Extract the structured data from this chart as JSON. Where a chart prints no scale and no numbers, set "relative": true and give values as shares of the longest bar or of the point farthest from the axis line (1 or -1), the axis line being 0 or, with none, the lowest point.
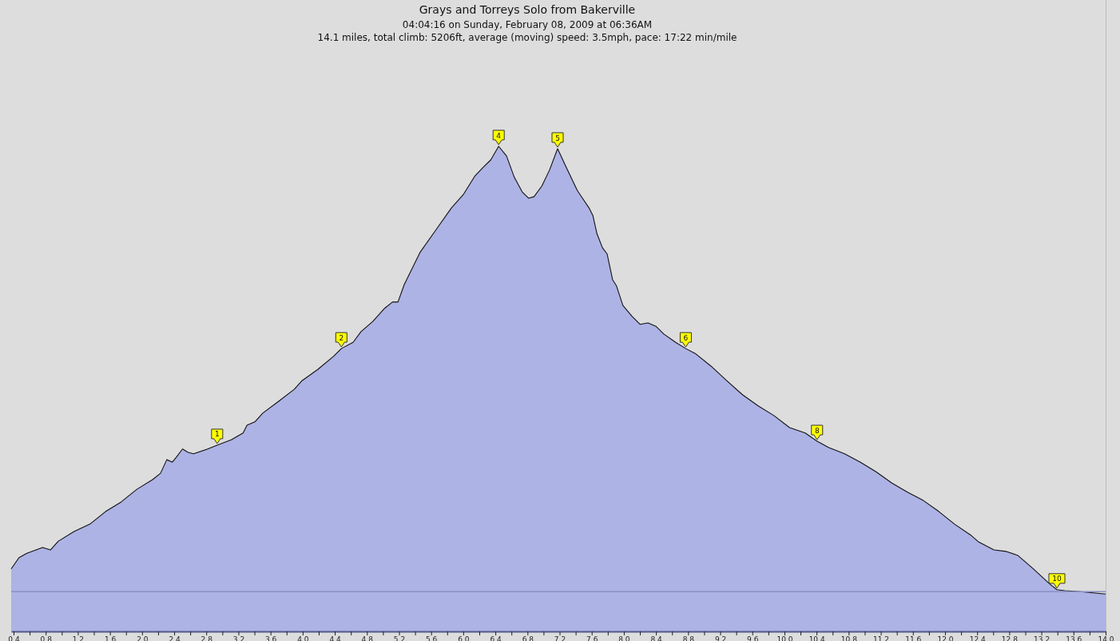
{
  "chart_data": {
    "type": "area",
    "relative": true,
    "title": "Grays and Torreys Solo from Bakerville",
    "subtitle": "04:04:16 on Sunday, February 08, 2009 at 06:36AM",
    "annotations": [
      "14.1 miles, total climb: 5206ft, average (moving) speed: 3.5mph, pace: 17:22 min/mile",
      {
        "text": "1",
        "x": 2.935,
        "y": 0.384
      },
      {
        "text": "2",
        "x": 4.482,
        "y": 0.583
      },
      {
        "text": "4",
        "x": 6.441,
        "y": 1.0
      },
      {
        "text": "5",
        "x": 7.175,
        "y": 0.995
      },
      {
        "text": "6",
        "x": 8.771,
        "y": 0.583
      },
      {
        "text": "8",
        "x": 10.406,
        "y": 0.392
      },
      {
        "text": "10",
        "x": 13.393,
        "y": 0.086
      }
    ],
    "xlim": [
      0.37,
      14.0
    ],
    "xticks": [
      0.4,
      {
        "value": 0.6,
        "label": null
      },
      0.8,
      {
        "value": 1.0,
        "label": null
      },
      1.2,
      {
        "value": 1.4,
        "label": null
      },
      1.6,
      {
        "value": 1.8,
        "label": null
      },
      {
        "value": 2.0,
        "label": "2.0"
      },
      {
        "value": 2.2,
        "label": null
      },
      2.4,
      {
        "value": 2.6,
        "label": null
      },
      2.8,
      {
        "value": 3.0,
        "label": null
      },
      3.2,
      {
        "value": 3.4,
        "label": null
      },
      3.6,
      {
        "value": 3.8,
        "label": null
      },
      {
        "value": 4.0,
        "label": "4.0"
      },
      {
        "value": 4.2,
        "label": null
      },
      4.4,
      {
        "value": 4.6,
        "label": null
      },
      4.8,
      {
        "value": 5.0,
        "label": null
      },
      5.2,
      {
        "value": 5.4,
        "label": null
      },
      5.6,
      {
        "value": 5.8,
        "label": null
      },
      {
        "value": 6.0,
        "label": "6.0"
      },
      {
        "value": 6.2,
        "label": null
      },
      6.4,
      {
        "value": 6.6,
        "label": null
      },
      6.8,
      {
        "value": 7.0,
        "label": null
      },
      7.2,
      {
        "value": 7.4,
        "label": null
      },
      7.6,
      {
        "value": 7.8,
        "label": null
      },
      {
        "value": 8.0,
        "label": "8.0"
      },
      {
        "value": 8.2,
        "label": null
      },
      8.4,
      {
        "value": 8.6,
        "label": null
      },
      8.8,
      {
        "value": 9.0,
        "label": null
      },
      9.2,
      {
        "value": 9.4,
        "label": null
      },
      9.6,
      {
        "value": 9.8,
        "label": null
      },
      {
        "value": 10.0,
        "label": "10.0"
      },
      {
        "value": 10.2,
        "label": null
      },
      10.4,
      {
        "value": 10.6,
        "label": null
      },
      10.8,
      {
        "value": 11.0,
        "label": null
      },
      11.2,
      {
        "value": 11.4,
        "label": null
      },
      11.6,
      {
        "value": 11.8,
        "label": null
      },
      {
        "value": 12.0,
        "label": "12.0"
      },
      {
        "value": 12.2,
        "label": null
      },
      12.4,
      {
        "value": 12.6,
        "label": null
      },
      12.8,
      {
        "value": 13.0,
        "label": null
      },
      13.2,
      {
        "value": 13.4,
        "label": null
      },
      13.6,
      {
        "value": 13.8,
        "label": null
      },
      {
        "value": 14.0,
        "label": "14.0"
      }
    ],
    "ref_lines": [
      {
        "axis": "y",
        "value": 0.082,
        "color": "#8a90c4"
      }
    ],
    "series": [
      {
        "color": "#adb3e5",
        "x": [
          0.37,
          0.467,
          0.565,
          0.761,
          0.859,
          0.957,
          1.153,
          1.349,
          1.545,
          1.741,
          1.936,
          2.132,
          2.23,
          2.308,
          2.377,
          2.426,
          2.504,
          2.573,
          2.641,
          2.817,
          2.935,
          3.111,
          3.258,
          3.307,
          3.405,
          3.503,
          3.699,
          3.895,
          3.993,
          4.188,
          4.384,
          4.482,
          4.629,
          4.727,
          4.874,
          5.021,
          5.119,
          5.187,
          5.265,
          5.461,
          5.657,
          5.853,
          5.999,
          6.146,
          6.245,
          6.343,
          6.441,
          6.539,
          6.636,
          6.734,
          6.813,
          6.881,
          6.979,
          7.077,
          7.175,
          7.273,
          7.42,
          7.566,
          7.615,
          7.665,
          7.733,
          7.792,
          7.86,
          7.909,
          7.988,
          8.105,
          8.203,
          8.301,
          8.399,
          8.497,
          8.644,
          8.771,
          8.888,
          9.084,
          9.28,
          9.476,
          9.672,
          9.868,
          10.064,
          10.259,
          10.406,
          10.553,
          10.749,
          10.945,
          11.141,
          11.336,
          11.532,
          11.728,
          11.924,
          12.12,
          12.316,
          12.413,
          12.609,
          12.756,
          12.903,
          13.099,
          13.295,
          13.393,
          13.491,
          13.687,
          14.0
        ],
        "values": [
          0.129,
          0.152,
          0.161,
          0.173,
          0.168,
          0.186,
          0.206,
          0.221,
          0.247,
          0.267,
          0.293,
          0.313,
          0.326,
          0.354,
          0.349,
          0.359,
          0.376,
          0.369,
          0.366,
          0.376,
          0.384,
          0.395,
          0.409,
          0.425,
          0.432,
          0.45,
          0.474,
          0.499,
          0.517,
          0.54,
          0.567,
          0.583,
          0.596,
          0.618,
          0.639,
          0.666,
          0.679,
          0.679,
          0.715,
          0.781,
          0.827,
          0.873,
          0.9,
          0.939,
          0.956,
          0.972,
          1.0,
          0.98,
          0.936,
          0.906,
          0.893,
          0.896,
          0.918,
          0.952,
          0.995,
          0.96,
          0.909,
          0.873,
          0.857,
          0.82,
          0.791,
          0.778,
          0.725,
          0.712,
          0.672,
          0.649,
          0.633,
          0.636,
          0.629,
          0.613,
          0.596,
          0.583,
          0.573,
          0.547,
          0.517,
          0.488,
          0.465,
          0.445,
          0.42,
          0.409,
          0.392,
          0.379,
          0.366,
          0.349,
          0.329,
          0.306,
          0.287,
          0.27,
          0.247,
          0.221,
          0.199,
          0.185,
          0.168,
          0.165,
          0.157,
          0.129,
          0.099,
          0.086,
          0.084,
          0.082,
          0.077
        ]
      }
    ]
  }
}
